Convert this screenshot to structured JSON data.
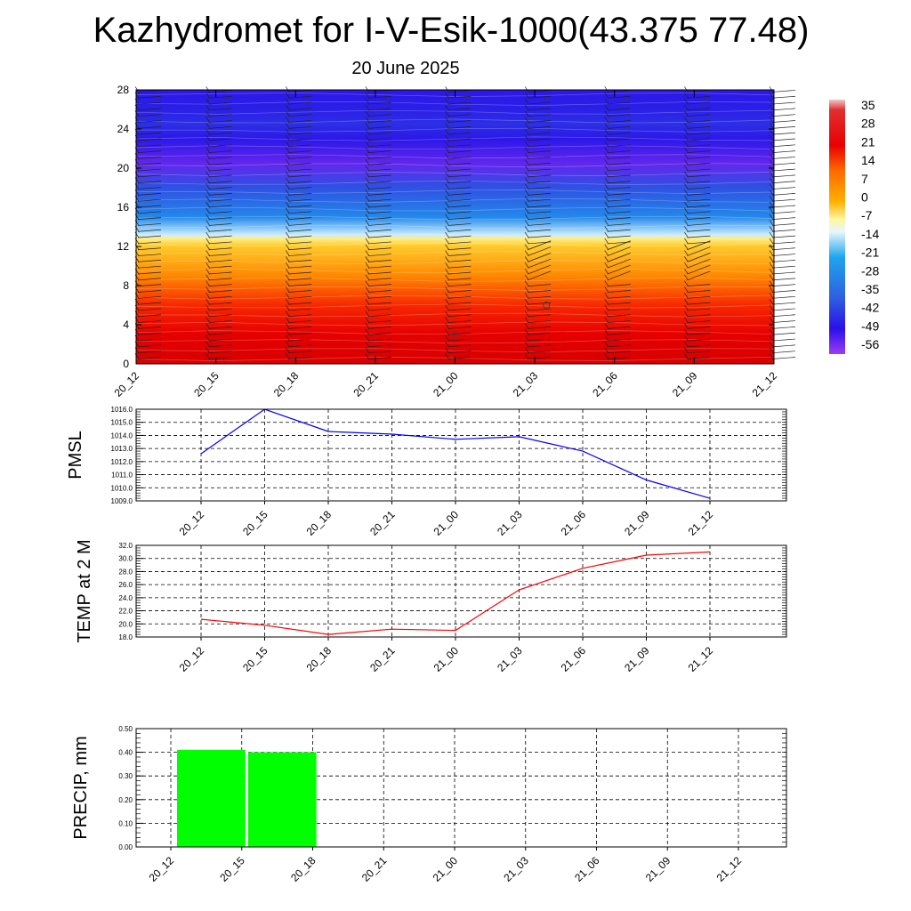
{
  "title": "Kazhydromet for I-V-Esik-1000(43.375 77.48)",
  "subtitle": "20 June 2025",
  "time_labels": [
    "20_12",
    "20_15",
    "20_18",
    "20_21",
    "21_00",
    "21_03",
    "21_06",
    "21_09",
    "21_12"
  ],
  "chart_data": [
    {
      "type": "heatmap",
      "name": "temperature-height",
      "x": [
        "20_12",
        "20_15",
        "20_18",
        "20_21",
        "21_00",
        "21_03",
        "21_06",
        "21_09",
        "21_12"
      ],
      "y_ticks": [
        0,
        4,
        8,
        12,
        16,
        20,
        24,
        28
      ],
      "ylim": [
        0,
        28
      ],
      "colorbar": {
        "labels": [
          "35",
          "28",
          "21",
          "14",
          "7",
          "0",
          "-7",
          "-14",
          "-21",
          "-28",
          "-35",
          "-42",
          "-49",
          "-56"
        ],
        "range": [
          -60,
          38
        ]
      },
      "profile": [
        {
          "level": 0,
          "value": 30
        },
        {
          "level": 3,
          "value": 22
        },
        {
          "level": 6,
          "value": 14
        },
        {
          "level": 9,
          "value": 4
        },
        {
          "level": 12,
          "value": -5
        },
        {
          "level": 12.8,
          "value": -11
        },
        {
          "level": 13.2,
          "value": -16
        },
        {
          "level": 15,
          "value": -30
        },
        {
          "level": 18,
          "value": -46
        },
        {
          "level": 20.5,
          "value": -58
        },
        {
          "level": 23,
          "value": -55
        },
        {
          "level": 24.5,
          "value": -52
        },
        {
          "level": 26,
          "value": -54
        },
        {
          "level": 28,
          "value": -55
        }
      ],
      "wind_barbs": true
    },
    {
      "type": "line",
      "ylabel": "PMSL",
      "categories": [
        "20_12",
        "20_15",
        "20_18",
        "20_21",
        "21_00",
        "21_03",
        "21_06",
        "21_09",
        "21_12"
      ],
      "values": [
        1012.6,
        1016.0,
        1014.3,
        1014.1,
        1013.7,
        1013.9,
        1012.8,
        1010.6,
        1009.2
      ],
      "ylim": [
        1009.0,
        1016.0
      ],
      "ticks": [
        "1009.0",
        "1010.0",
        "1011.0",
        "1012.0",
        "1013.0",
        "1014.0",
        "1015.0",
        "1016.0"
      ],
      "color": "#0000ff",
      "grid": true
    },
    {
      "type": "line",
      "ylabel": "TEMP at 2 M",
      "categories": [
        "20_12",
        "20_15",
        "20_18",
        "20_21",
        "21_00",
        "21_03",
        "21_06",
        "21_09",
        "21_12"
      ],
      "values": [
        20.7,
        19.8,
        18.4,
        19.2,
        19.0,
        25.2,
        28.5,
        30.5,
        31.0
      ],
      "ylim": [
        18.0,
        32.0
      ],
      "ticks": [
        "18.0",
        "20.0",
        "22.0",
        "24.0",
        "26.0",
        "28.0",
        "30.0",
        "32.0"
      ],
      "color": "#ff0000",
      "grid": true
    },
    {
      "type": "bar",
      "ylabel": "PRECIP, mm",
      "categories": [
        "20_12",
        "20_15",
        "20_18",
        "20_21",
        "21_00",
        "21_03",
        "21_06",
        "21_09",
        "21_12"
      ],
      "values": [
        0,
        0.41,
        0.4,
        0,
        0,
        0,
        0,
        0,
        0
      ],
      "ylim": [
        0,
        0.5
      ],
      "ticks": [
        "0.00",
        "0.10",
        "0.20",
        "0.30",
        "0.40",
        "0.50"
      ],
      "color": "#00ff00",
      "grid": true
    }
  ]
}
